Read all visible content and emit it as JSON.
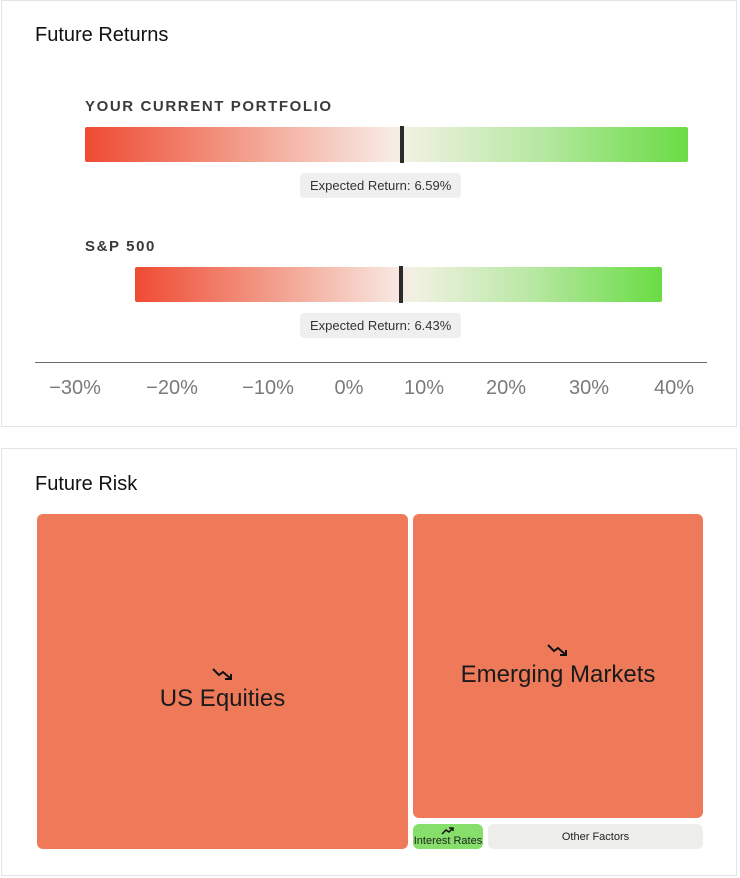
{
  "returns": {
    "title": "Future Returns",
    "rows": [
      {
        "label": "YOUR CURRENT PORTFOLIO",
        "pill_label": "Expected Return:",
        "pill_value": "6.59%",
        "expected_return_pct": 6.59
      },
      {
        "label": "S&P 500",
        "pill_label": "Expected Return:",
        "pill_value": "6.43%",
        "expected_return_pct": 6.43
      }
    ],
    "axis_ticks": [
      "−30%",
      "−20%",
      "−10%",
      "0%",
      "10%",
      "20%",
      "30%",
      "40%"
    ],
    "colors": {
      "negative": "#ef4b33",
      "positive": "#69dc44",
      "marker": "#2b2b2b"
    }
  },
  "risk": {
    "title": "Future Risk",
    "tiles": [
      {
        "label": "US Equities",
        "trend": "trending-down-icon",
        "color": "#ef7a5a"
      },
      {
        "label": "Emerging Markets",
        "trend": "trending-down-icon",
        "color": "#ef7a5a"
      },
      {
        "label": "Interest Rates",
        "trend": "trending-up-icon",
        "color": "#86df6a"
      },
      {
        "label": "Other Factors",
        "trend": "",
        "color": "#ededea"
      }
    ]
  }
}
